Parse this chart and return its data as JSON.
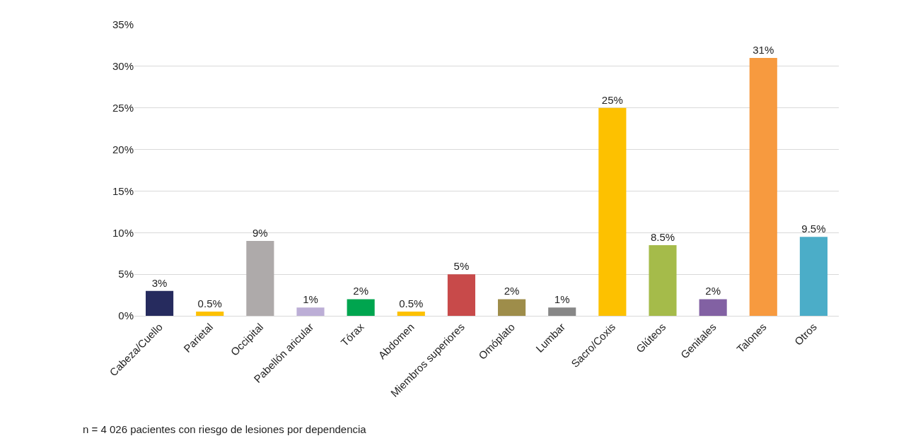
{
  "chart_data": {
    "type": "bar",
    "categories": [
      "Cabeza/Cuello",
      "Parietal",
      "Occipital",
      "Pabellón aricular",
      "Tórax",
      "Abdomen",
      "Miembros superiores",
      "Omóplato",
      "Lumbar",
      "Sacro/Coxis",
      "Glúteos",
      "Genitales",
      "Talones",
      "Otros"
    ],
    "values": [
      3,
      0.5,
      9,
      1,
      2,
      0.5,
      5,
      2,
      1,
      25,
      8.5,
      2,
      31,
      9.5
    ],
    "colors": [
      "#262b5e",
      "#fdc100",
      "#aeaaaa",
      "#bcaed6",
      "#00a54f",
      "#fdc100",
      "#c84a4a",
      "#9e8d4a",
      "#878787",
      "#fdc100",
      "#a5bb4a",
      "#8261a3",
      "#f79a3f",
      "#4badc8"
    ],
    "value_labels": [
      "3%",
      "0.5%",
      "9%",
      "1%",
      "2%",
      "0.5%",
      "5%",
      "2%",
      "1%",
      "25%",
      "8.5%",
      "2%",
      "31%",
      "9.5%"
    ],
    "ylim": [
      0,
      35
    ],
    "yticks": [
      {
        "value": 0,
        "label": "0%"
      },
      {
        "value": 5,
        "label": "5%"
      },
      {
        "value": 10,
        "label": "10%"
      },
      {
        "value": 15,
        "label": "15%"
      },
      {
        "value": 20,
        "label": "20%"
      },
      {
        "value": 25,
        "label": "25%"
      },
      {
        "value": 30,
        "label": "30%"
      },
      {
        "value": 35,
        "label": "35%"
      }
    ],
    "grid": "y",
    "annotations": [
      "n = 4 026 pacientes con riesgo de lesiones por dependencia"
    ]
  }
}
